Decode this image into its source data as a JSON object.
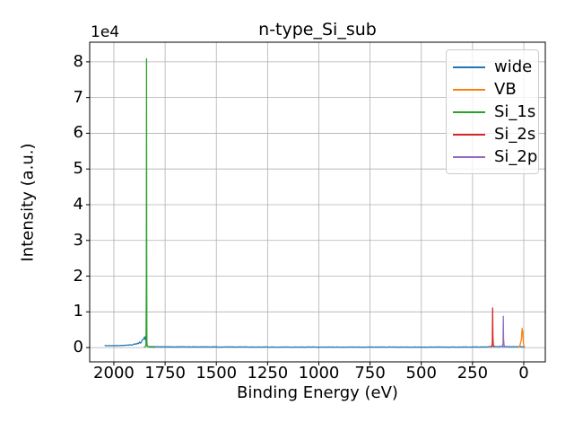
{
  "chart_data": {
    "type": "line",
    "title": "n-type_Si_sub",
    "xlabel": "Binding Energy (eV)",
    "ylabel": "Intensity (a.u.)",
    "y_offset_label": "1e4",
    "xlim": [
      2118,
      -105
    ],
    "ylim": [
      -4000,
      85500
    ],
    "x_inverted": true,
    "grid": true,
    "grid_color": "#b0b0b0",
    "spine_color": "#000000",
    "x_ticks": [
      2000,
      1750,
      1500,
      1250,
      1000,
      750,
      500,
      250,
      0
    ],
    "x_tick_labels": [
      "2000",
      "1750",
      "1500",
      "1250",
      "1000",
      "750",
      "500",
      "250",
      "0"
    ],
    "y_ticks": [
      0,
      10000,
      20000,
      30000,
      40000,
      50000,
      60000,
      70000,
      80000
    ],
    "y_tick_labels": [
      "0",
      "1",
      "2",
      "3",
      "4",
      "5",
      "6",
      "7",
      "8"
    ],
    "legend_position": "upper right",
    "series": [
      {
        "name": "wide",
        "color": "#1f77b4",
        "points": [
          [
            2045,
            520,
            70
          ],
          [
            2010,
            540,
            70
          ],
          [
            1975,
            560,
            70
          ],
          [
            1945,
            620,
            80
          ],
          [
            1915,
            760,
            90
          ],
          [
            1895,
            950,
            110
          ],
          [
            1880,
            1200,
            160
          ],
          [
            1870,
            1500,
            260
          ],
          [
            1863,
            1900,
            380
          ],
          [
            1858,
            2500,
            450
          ],
          [
            1854,
            2200,
            450
          ],
          [
            1851,
            3100,
            380
          ],
          [
            1848,
            2450,
            380
          ],
          [
            1846,
            3400,
            280
          ],
          [
            1844,
            2500,
            260
          ],
          [
            1842,
            1400,
            180
          ],
          [
            1840,
            600,
            100
          ],
          [
            1836,
            300,
            60
          ],
          [
            1815,
            240,
            50
          ],
          [
            1750,
            210,
            45
          ],
          [
            1600,
            190,
            45
          ],
          [
            1400,
            170,
            40
          ],
          [
            1150,
            150,
            40
          ],
          [
            900,
            140,
            40
          ],
          [
            650,
            140,
            40
          ],
          [
            400,
            140,
            40
          ],
          [
            250,
            150,
            45
          ],
          [
            180,
            180,
            50
          ],
          [
            158,
            280,
            70
          ],
          [
            152,
            420,
            90
          ],
          [
            147,
            300,
            60
          ],
          [
            125,
            230,
            50
          ],
          [
            103,
            330,
            70
          ],
          [
            97,
            260,
            50
          ],
          [
            60,
            230,
            50
          ],
          [
            30,
            280,
            60
          ],
          [
            12,
            260,
            60
          ],
          [
            2,
            160,
            40
          ],
          [
            -5,
            60,
            30
          ]
        ]
      },
      {
        "name": "VB",
        "color": "#ff7f0e",
        "points": [
          [
            26,
            130,
            40
          ],
          [
            20,
            420,
            90
          ],
          [
            15,
            1300,
            200
          ],
          [
            11.5,
            2400,
            300
          ],
          [
            9.5,
            4100,
            350
          ],
          [
            8,
            5500,
            0
          ],
          [
            6.8,
            4200,
            250
          ],
          [
            5.2,
            4800,
            0
          ],
          [
            3.8,
            3100,
            250
          ],
          [
            2,
            1600,
            180
          ],
          [
            0,
            750,
            100
          ],
          [
            -2,
            350,
            60
          ],
          [
            -4.5,
            120,
            40
          ]
        ]
      },
      {
        "name": "Si_1s",
        "color": "#2ca02c",
        "points": [
          [
            1853,
            140,
            40
          ],
          [
            1848,
            260,
            60
          ],
          [
            1845,
            420,
            80
          ],
          [
            1843,
            900,
            120
          ],
          [
            1841.6,
            20000,
            0
          ],
          [
            1840.6,
            81000,
            0
          ],
          [
            1839.8,
            25000,
            0
          ],
          [
            1838.8,
            1800,
            150
          ],
          [
            1837,
            500,
            70
          ],
          [
            1833,
            250,
            50
          ],
          [
            1825,
            150,
            40
          ],
          [
            1798,
            100,
            30
          ]
        ]
      },
      {
        "name": "Si_2s",
        "color": "#d62728",
        "points": [
          [
            163,
            230,
            50
          ],
          [
            157,
            350,
            70
          ],
          [
            153.5,
            1200,
            150
          ],
          [
            151.8,
            11200,
            0
          ],
          [
            150.4,
            3200,
            0
          ],
          [
            149,
            900,
            100
          ],
          [
            146,
            420,
            60
          ],
          [
            141,
            280,
            40
          ]
        ]
      },
      {
        "name": "Si_2p",
        "color": "#9467bd",
        "points": [
          [
            109,
            190,
            40
          ],
          [
            104,
            340,
            60
          ],
          [
            101,
            1100,
            120
          ],
          [
            99.6,
            8900,
            0
          ],
          [
            98.4,
            2400,
            0
          ],
          [
            96.5,
            600,
            70
          ],
          [
            93,
            280,
            40
          ],
          [
            89,
            200,
            35
          ]
        ]
      }
    ]
  }
}
